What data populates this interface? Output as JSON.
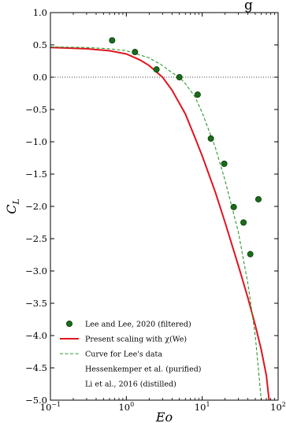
{
  "chart_data": {
    "type": "scatter",
    "title_fragment": "g",
    "xlabel": "Eo",
    "ylabel": "C_L",
    "xscale": "log",
    "xlim": [
      0.1,
      100
    ],
    "ylim": [
      -5.0,
      1.0
    ],
    "xticks": [
      {
        "value": 0.1,
        "base": "10",
        "exp": "−1"
      },
      {
        "value": 10,
        "base": "10",
        "exp": "1"
      },
      {
        "value": 100,
        "base": "10",
        "exp": "2"
      }
    ],
    "xtick_1": {
      "value": 1,
      "base": "10",
      "exp": "0"
    },
    "yticks": [
      {
        "value": 1.0,
        "label": "1.0"
      },
      {
        "value": 0.5,
        "label": "0.5"
      },
      {
        "value": 0.0,
        "label": "0.0"
      },
      {
        "value": -0.5,
        "label": "−0.5"
      },
      {
        "value": -1.0,
        "label": "−1.0"
      },
      {
        "value": -1.5,
        "label": "−1.5"
      },
      {
        "value": -2.0,
        "label": "−2.0"
      },
      {
        "value": -2.5,
        "label": "−2.5"
      },
      {
        "value": -3.0,
        "label": "−3.0"
      },
      {
        "value": -3.5,
        "label": "−3.5"
      },
      {
        "value": -4.0,
        "label": "−4.0"
      },
      {
        "value": -4.5,
        "label": "−4.5"
      },
      {
        "value": -5.0,
        "label": "−5.0"
      }
    ],
    "reference_line": {
      "y": 0.0,
      "style": "dotted"
    },
    "grid": false,
    "legend_position": "bottom-left",
    "series": [
      {
        "name": "Lee and Lee, 2020 (filtered)",
        "kind": "scatter",
        "color": "#1a6b1a",
        "points": [
          [
            0.65,
            0.57
          ],
          [
            1.3,
            0.39
          ],
          [
            2.5,
            0.12
          ],
          [
            5.0,
            0.0
          ],
          [
            8.7,
            -0.27
          ],
          [
            13.0,
            -0.95
          ],
          [
            19.5,
            -1.34
          ],
          [
            26.0,
            -2.01
          ],
          [
            35.0,
            -2.25
          ],
          [
            43.0,
            -2.74
          ],
          [
            55.0,
            -1.89
          ]
        ]
      },
      {
        "name": "Present scaling with χ(We)",
        "kind": "line",
        "color": "#e0141e",
        "points": [
          [
            0.1,
            0.46
          ],
          [
            0.3,
            0.44
          ],
          [
            0.6,
            0.41
          ],
          [
            1.0,
            0.36
          ],
          [
            1.5,
            0.27
          ],
          [
            2.0,
            0.18
          ],
          [
            3.0,
            0.0
          ],
          [
            4.0,
            -0.2
          ],
          [
            6.0,
            -0.57
          ],
          [
            8.0,
            -0.93
          ],
          [
            10.0,
            -1.22
          ],
          [
            15.0,
            -1.79
          ],
          [
            20.0,
            -2.25
          ],
          [
            30.0,
            -2.92
          ],
          [
            40.0,
            -3.42
          ],
          [
            50.0,
            -3.84
          ],
          [
            60.0,
            -4.22
          ],
          [
            70.0,
            -4.62
          ],
          [
            76.0,
            -5.0
          ]
        ]
      },
      {
        "name": "Curve for Lee's data",
        "kind": "dashed-line",
        "color": "#2a9a2a",
        "points": [
          [
            0.1,
            0.47
          ],
          [
            0.3,
            0.46
          ],
          [
            0.6,
            0.44
          ],
          [
            1.0,
            0.41
          ],
          [
            2.0,
            0.3
          ],
          [
            3.0,
            0.18
          ],
          [
            4.0,
            0.07
          ],
          [
            5.0,
            0.0
          ],
          [
            6.0,
            -0.1
          ],
          [
            8.0,
            -0.3
          ],
          [
            10.0,
            -0.55
          ],
          [
            15.0,
            -1.1
          ],
          [
            20.0,
            -1.6
          ],
          [
            30.0,
            -2.4
          ],
          [
            40.0,
            -3.2
          ],
          [
            50.0,
            -4.0
          ],
          [
            60.0,
            -5.0
          ]
        ]
      },
      {
        "name": "Hessenkemper et al. (purified)",
        "kind": "scatter",
        "color": "#ffffff",
        "points": []
      },
      {
        "name": "Li et al., 2016 (distilled)",
        "kind": "scatter",
        "color": "#ffffff",
        "points": []
      }
    ]
  }
}
